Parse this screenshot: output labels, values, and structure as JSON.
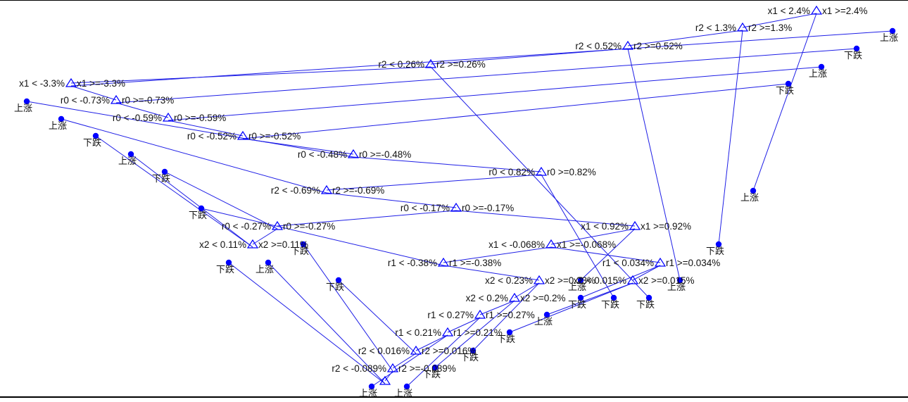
{
  "colors": {
    "edge": "#1e1ee6",
    "node": "#0000ff",
    "text": "#111111",
    "border": "#000000"
  },
  "leaf_labels": {
    "up": "上涨",
    "down": "下跌"
  },
  "tree": {
    "left": "x1 < 2.4%",
    "right": "x1 >=2.4%",
    "right_child": "上涨",
    "left_child": {
      "left": "r2 < 1.3%",
      "right": "r2 >=1.3%",
      "right_child": "下跌",
      "left_child": {
        "left": "r2 < 0.52%",
        "right": "r2 >=0.52%",
        "right_child": "上涨",
        "left_child": {
          "left": "r2 < 0.26%",
          "right": "r2 >=0.26%",
          "right_child": "下跌",
          "left_child": {
            "left": "x1 < -3.3%",
            "right": "x1 >=-3.3%",
            "left_child": "上涨",
            "right_child": {
              "left": "r0 < -0.73%",
              "right": "r0 >=-0.73%",
              "left_child": "下跌",
              "right_child": {
                "left": "r0 < -0.59%",
                "right": "r0 >=-0.59%",
                "left_child": "上涨",
                "right_child": {
                  "left": "r0 < -0.52%",
                  "right": "r0 >=-0.52%",
                  "left_child": "下跌",
                  "right_child": {
                    "left": "r0 < -0.48%",
                    "right": "r0 >=-0.48%",
                    "left_child": "上涨",
                    "right_child": {
                      "left": "r0 < 0.82%",
                      "right": "r0 >=0.82%",
                      "right_child": "下跌",
                      "left_child": {
                        "left": "r2 < -0.69%",
                        "right": "r2 >=-0.69%",
                        "left_child": "上涨",
                        "right_child": {
                          "left": "r0 < -0.17%",
                          "right": "r0 >=-0.17%",
                          "left_child": {
                            "left": "r0 < -0.27%",
                            "right": "r0 >=-0.27%",
                            "right_child": "下跌",
                            "left_child": {
                              "left": "x2 < 0.11%",
                              "right": "x2 >=0.11%",
                              "left_child": "下跌",
                              "right_child": "上涨"
                            }
                          },
                          "right_child": {
                            "left": "x1 < 0.92%",
                            "right": "x1 >=0.92%",
                            "right_child": "上涨",
                            "left_child": {
                              "left": "x1 < -0.068%",
                              "right": "x1 >=-0.068%",
                              "left_child": {
                                "left": "r1 < -0.38%",
                                "right": "r1 >=-0.38%",
                                "left_child": "下跌",
                                "right_child": {
                                  "left": "x2 < 0.23%",
                                  "right": "x2 >=0.23%",
                                  "right_child": "下跌",
                                  "left_child": {
                                    "left": "x2 < 0.2%",
                                    "right": "x2 >=0.2%",
                                    "right_child": "下跌",
                                    "left_child": {
                                      "left": "r1 < 0.27%",
                                      "right": "r1 >=0.27%",
                                      "right_child": "上涨",
                                      "left_child": {
                                        "left": "r1 < 0.21%",
                                        "right": "r1 >=0.21%",
                                        "right_child": "上涨",
                                        "left_child": {
                                          "left": "r2 < 0.016%",
                                          "right": "r2 >=0.016%",
                                          "right_child": "下跌",
                                          "left_child": {
                                            "left": "r2 < -0.089%",
                                            "right": "r2 >=-0.089%",
                                            "right_child": "下跌",
                                            "left_child": {
                                              "left": "",
                                              "right": "",
                                              "left_child": "下跌",
                                              "right_child": "上涨"
                                            }
                                          }
                                        }
                                      }
                                    }
                                  }
                                }
                              },
                              "right_child": {
                                "left": "r1 < 0.034%",
                                "right": "r1 >=0.034%",
                                "right_child": "下跌",
                                "left_child": {
                                  "left": "x2 < 0.015%",
                                  "right": "x2 >=0.015%",
                                  "left_child": "下跌",
                                  "right_child": "上涨"
                                }
                              }
                            }
                          }
                        }
                      }
                    }
                  }
                }
              }
            }
          }
        }
      }
    }
  }
}
